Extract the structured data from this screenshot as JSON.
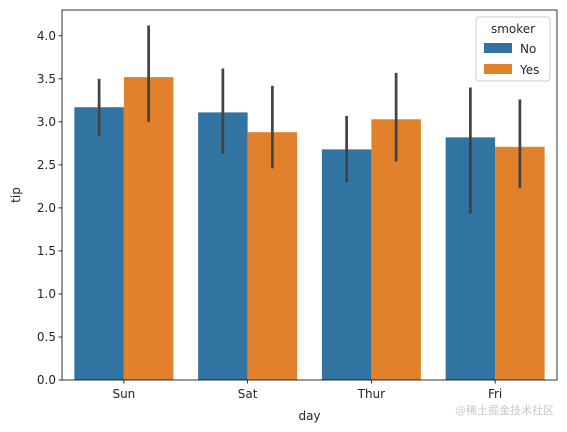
{
  "chart_data": {
    "type": "bar",
    "xlabel": "day",
    "ylabel": "tip",
    "categories": [
      "Sun",
      "Sat",
      "Thur",
      "Fri"
    ],
    "ylim": [
      0,
      4.3
    ],
    "yticks": [
      "0.0",
      "0.5",
      "1.0",
      "1.5",
      "2.0",
      "2.5",
      "3.0",
      "3.5",
      "4.0"
    ],
    "grid": false,
    "legend": {
      "title": "smoker",
      "placement": "top-right"
    },
    "series": [
      {
        "name": "No",
        "color": "#3274a1",
        "values": [
          3.17,
          3.11,
          2.68,
          2.82
        ],
        "ci_low": [
          2.83,
          2.63,
          2.3,
          1.93
        ],
        "ci_high": [
          3.5,
          3.62,
          3.07,
          3.4
        ]
      },
      {
        "name": "Yes",
        "color": "#e1812c",
        "values": [
          3.52,
          2.88,
          3.03,
          2.71
        ],
        "ci_low": [
          3.0,
          2.46,
          2.54,
          2.23
        ],
        "ci_high": [
          4.12,
          3.42,
          3.57,
          3.26
        ]
      }
    ],
    "error_bar_color": "#424242"
  },
  "watermark": "@稀土掘金技术社区"
}
